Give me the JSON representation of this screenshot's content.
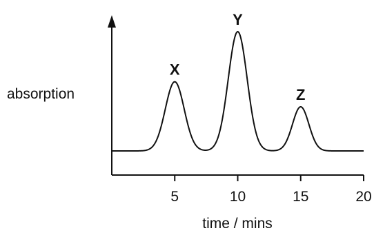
{
  "chart_data": {
    "type": "line",
    "xlabel": "time / mins",
    "ylabel": "absorption",
    "xlim": [
      0,
      20
    ],
    "ylim": [
      0,
      100
    ],
    "xticks": [
      5,
      10,
      15,
      20
    ],
    "baseline": 0,
    "peaks": [
      {
        "label": "X",
        "time": 5,
        "height": 58,
        "width": 0.75
      },
      {
        "label": "Y",
        "time": 10,
        "height": 100,
        "width": 0.75
      },
      {
        "label": "Z",
        "time": 15,
        "height": 37,
        "width": 0.65
      }
    ],
    "grid": false,
    "y_axis_arrow": true
  }
}
